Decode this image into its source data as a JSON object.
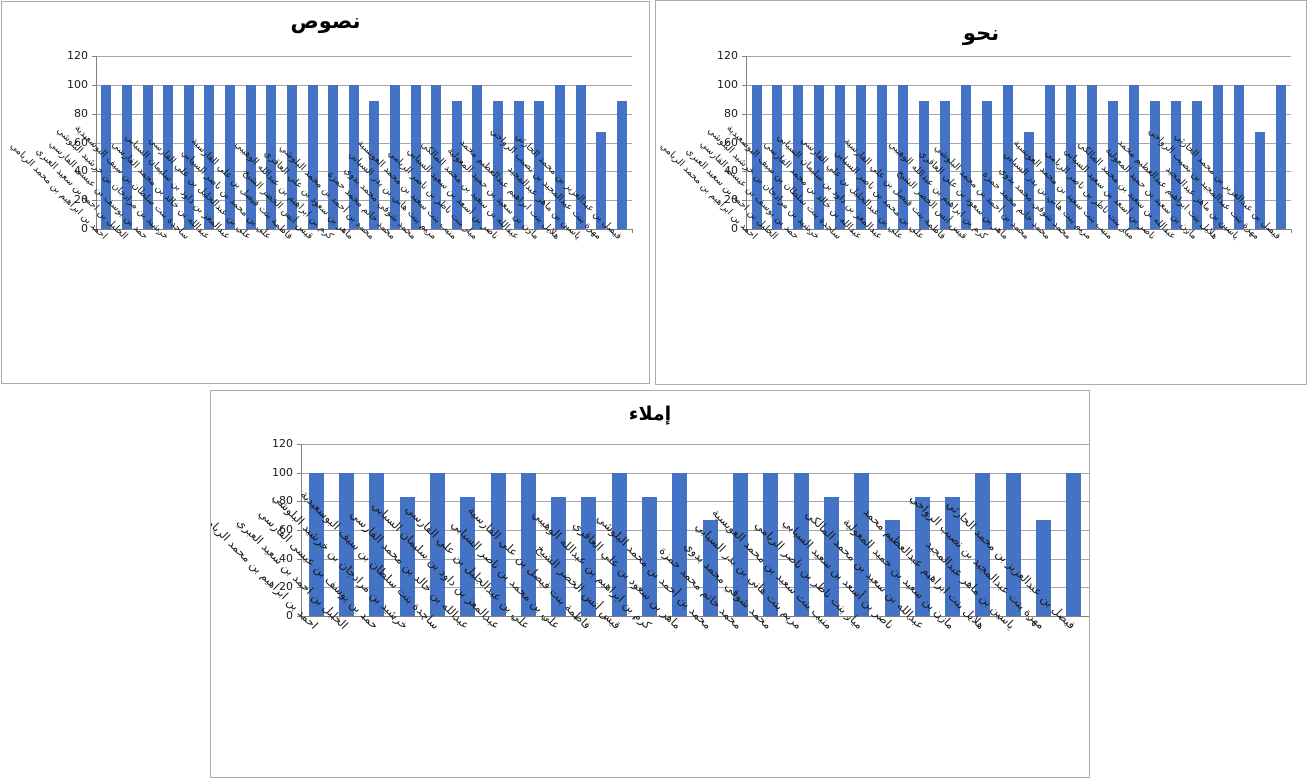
{
  "colors": {
    "bar": "#4472c4",
    "gridline": "#a6a6a6",
    "axis": "#808080",
    "panel_border": "#ababab",
    "text": "#000000"
  },
  "chart_data": [
    {
      "type": "bar",
      "title": "نصوص",
      "ylabel": "",
      "xlabel": "",
      "ylim": [
        0,
        120
      ],
      "yticks": [
        0,
        20,
        40,
        60,
        80,
        100,
        120
      ],
      "grid": true,
      "legend": false,
      "categories": [
        "احمد بن ابراهيم بن محمد الريامي",
        "الخليل بن احمد بن سعيد العبري",
        "حمد بن يوسف بن عيسى الفارسي",
        "خرشيد بن مرادجان بن خرشيد البلوشي",
        "ساجدة بنت سلطان بن سيف البوسعيدية",
        "عبدالله بن خالد بن محمد الفارسي",
        "عبدالمعز بن داود بن سليمان السيابي",
        "علي بن عبدالجليل بن علي الفارسي",
        "علي بن محمد بن ناصر السيابي",
        "فاطمة بنت فيصل بن علي الفارسية",
        "قيس أنس الخضر الشيخ",
        "كرم بن ابراهيم بن عبدالله الوهيبي",
        "ماهر بن سعود بن علي العاقري",
        "محمد بن أحمد بن محمد البلوشي",
        "محمد حاتم محمد حمزة",
        "محمد شوقي محمد بدوي",
        "مريم بنت هاني بن بدر السيابي",
        "منيب بنت سعيد بن محمد العويسية",
        "ميار بنت ناظر بن ناصر الريامي",
        "ناصر بن أسعد بن سعيد السيابي",
        "عبدالله بن سعيد بن محمد المالكي",
        "مازن بن سعيد بن حميد المعولية",
        "هلايل بنت ابراهيم عبدالعظيم محمد",
        "ياسين بن ماهر عبدالمجيد",
        "مهرة بنت عبدالمجيد بن نصيب الرواحي",
        "فيصل بن عبدالعزيز بن محمد الحارثي"
      ],
      "values": [
        100,
        100,
        100,
        100,
        100,
        100,
        100,
        100,
        100,
        100,
        100,
        100,
        100,
        89,
        100,
        100,
        100,
        89,
        100,
        89,
        89,
        89,
        100,
        100,
        67,
        89
      ]
    },
    {
      "type": "bar",
      "title": "نحو",
      "ylabel": "",
      "xlabel": "",
      "ylim": [
        0,
        120
      ],
      "yticks": [
        0,
        20,
        40,
        60,
        80,
        100,
        120
      ],
      "grid": true,
      "legend": false,
      "categories": [
        "احمد بن ابراهيم بن محمد الريامي",
        "الخليل بن احمد بن سعيد العبري",
        "حمد بن يوسف بن عيسى الفارسي",
        "خرشيد بن مرادجان بن خرشيد البلوشي",
        "ساجدة بنت سلطان بن سيف البوسعيدية",
        "عبدالله بن خالد بن محمد الفارسي",
        "عبدالمعز بن داود بن سليمان السيابي",
        "علي بن عبدالجليل بن علي الفارسي",
        "علي بن محمد بن ناصر السيابي",
        "فاطمة بنت فيصل بن علي الفارسية",
        "قيس أنس الخضر الشيخ",
        "كرم بن ابراهيم بن عبدالله الوهيبي",
        "ماهر بن سعود بن علي العاقري",
        "محمد بن أحمد بن محمد البلوشي",
        "محمد حاتم محمد حمزة",
        "محمد شوقي محمد بدوي",
        "مريم بنت هاني بن بدر السيابي",
        "منيب بنت سعيد بن محمد العويسية",
        "ميار بنت ناظر بن ناصر الريامي",
        "ناصر بن أسعد بن سعيد السيابي",
        "عبدالله بن سعيد بن محمد المالكي",
        "مازن بن سعيد بن حميد المعولية",
        "هلايل بنت ابراهيم عبدالعظيم محمد",
        "ياسين بن ماهر عبدالمجيد",
        "مهرة بنت عبدالمجيد بن نصيب الرواحي",
        "فيصل بن عبدالعزيز بن محمد الحارثي"
      ],
      "values": [
        100,
        100,
        100,
        100,
        100,
        100,
        100,
        100,
        89,
        89,
        100,
        89,
        100,
        67,
        100,
        100,
        100,
        89,
        100,
        89,
        89,
        89,
        100,
        100,
        67,
        100
      ]
    },
    {
      "type": "bar",
      "title": "إملاء",
      "ylabel": "",
      "xlabel": "",
      "ylim": [
        0,
        120
      ],
      "yticks": [
        0,
        20,
        40,
        60,
        80,
        100,
        120
      ],
      "grid": true,
      "legend": false,
      "categories": [
        "احمد بن ابراهيم بن محمد الريامي",
        "الخليل بن احمد بن سعيد العبري",
        "حمد بن يوسف بن عيسى الفارسي",
        "خرشيد بن مرادجان بن خرشيد البلوشي",
        "ساجدة بنت سلطان بن سيف البوسعيدية",
        "عبدالله بن خالد بن محمد الفارسي",
        "عبدالمعز بن داود بن سليمان السيابي",
        "علي بن عبدالجليل بن علي الفارسي",
        "علي بن محمد بن ناصر السيابي",
        "فاطمة بنت فيصل بن علي الفارسية",
        "قيس أنس الخضر الشيخ",
        "كرم بن ابراهيم بن عبدالله الوهيبي",
        "ماهر بن سعود بن علي العاقري",
        "محمد بن أحمد بن محمد البلوشي",
        "محمد حاتم محمد حمزة",
        "محمد شوقي محمد بدوي",
        "مريم بنت هاني بن بدر السيابي",
        "منيب بنت سعيد بن محمد العويسية",
        "ميار بنت ناظر بن ناصر الريامي",
        "ناصر بن أسعد بن سعيد السيابي",
        "عبدالله بن سعيد بن محمد المالكي",
        "مازن بن سعيد بن حميد المعولية",
        "هلايل بنت ابراهيم عبدالعظيم محمد",
        "ياسين بن ماهر عبدالمجيد",
        "مهرة بنت عبدالمجيد بن نصيب الرواحي",
        "فيصل بن عبدالعزيز بن محمد الحارثي"
      ],
      "values": [
        100,
        100,
        100,
        83,
        100,
        83,
        100,
        100,
        83,
        83,
        100,
        83,
        100,
        67,
        100,
        100,
        100,
        83,
        100,
        67,
        83,
        83,
        100,
        100,
        67,
        100
      ]
    }
  ]
}
